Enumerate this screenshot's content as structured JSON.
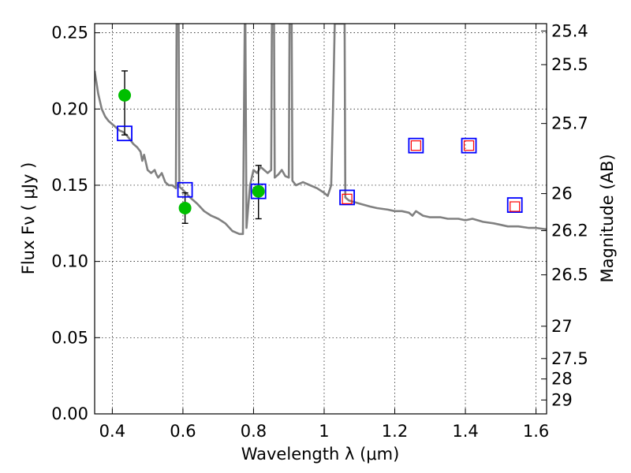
{
  "chart_data": {
    "type": "scatter",
    "xlabel": "Wavelength  λ (μm)",
    "ylabel": "Flux  Fν  ( μJy )",
    "y2label": "Magnitude (AB)",
    "xlim": [
      0.35,
      1.63
    ],
    "ylim": [
      0.0,
      0.256
    ],
    "grid": true,
    "x_ticks": [
      0.4,
      0.6,
      0.8,
      1.0,
      1.2,
      1.4,
      1.6
    ],
    "x_tick_labels": [
      "0.4",
      "0.6",
      "0.8",
      "1",
      "1.2",
      "1.4",
      "1.6"
    ],
    "y_ticks": [
      0.0,
      0.05,
      0.1,
      0.15,
      0.2,
      0.25
    ],
    "y_tick_labels": [
      "0.00",
      "0.05",
      "0.10",
      "0.15",
      "0.20",
      "0.25"
    ],
    "y2_ticks": [
      {
        "flux": 0.2512,
        "label": "25.4"
      },
      {
        "flux": 0.2291,
        "label": "25.5"
      },
      {
        "flux": 0.1905,
        "label": "25.7"
      },
      {
        "flux": 0.1445,
        "label": "26"
      },
      {
        "flux": 0.1202,
        "label": "26.2"
      },
      {
        "flux": 0.0912,
        "label": "26.5"
      },
      {
        "flux": 0.0575,
        "label": "27"
      },
      {
        "flux": 0.0363,
        "label": "27.5"
      },
      {
        "flux": 0.0229,
        "label": "28"
      },
      {
        "flux": 0.0091,
        "label": "29"
      }
    ],
    "series": [
      {
        "kind": "line",
        "color": "#808080",
        "x": [
          0.35,
          0.36,
          0.37,
          0.38,
          0.39,
          0.4,
          0.41,
          0.42,
          0.43,
          0.44,
          0.45,
          0.46,
          0.47,
          0.48,
          0.485,
          0.49,
          0.5,
          0.51,
          0.52,
          0.525,
          0.53,
          0.54,
          0.55,
          0.56,
          0.57,
          0.58,
          0.582,
          0.585,
          0.588,
          0.59,
          0.6,
          0.62,
          0.64,
          0.66,
          0.68,
          0.7,
          0.72,
          0.74,
          0.75,
          0.76,
          0.77,
          0.775,
          0.777,
          0.78,
          0.79,
          0.8,
          0.81,
          0.82,
          0.83,
          0.84,
          0.85,
          0.852,
          0.855,
          0.858,
          0.86,
          0.87,
          0.88,
          0.89,
          0.9,
          0.902,
          0.905,
          0.908,
          0.91,
          0.92,
          0.94,
          0.96,
          0.98,
          1.0,
          1.01,
          1.02,
          1.025,
          1.03,
          1.035,
          1.04,
          1.045,
          1.05,
          1.055,
          1.058,
          1.06,
          1.07,
          1.1,
          1.13,
          1.15,
          1.18,
          1.2,
          1.22,
          1.24,
          1.25,
          1.26,
          1.28,
          1.3,
          1.33,
          1.35,
          1.38,
          1.4,
          1.42,
          1.45,
          1.48,
          1.5,
          1.52,
          1.55,
          1.58,
          1.6,
          1.63
        ],
        "y": [
          0.225,
          0.21,
          0.2,
          0.195,
          0.192,
          0.19,
          0.188,
          0.186,
          0.185,
          0.183,
          0.18,
          0.177,
          0.175,
          0.172,
          0.166,
          0.17,
          0.16,
          0.158,
          0.16,
          0.157,
          0.155,
          0.158,
          0.152,
          0.15,
          0.15,
          0.148,
          0.256,
          0.256,
          0.256,
          0.149,
          0.147,
          0.142,
          0.138,
          0.133,
          0.13,
          0.128,
          0.125,
          0.12,
          0.119,
          0.118,
          0.118,
          0.256,
          0.256,
          0.122,
          0.15,
          0.16,
          0.158,
          0.162,
          0.16,
          0.158,
          0.16,
          0.256,
          0.256,
          0.256,
          0.155,
          0.157,
          0.16,
          0.156,
          0.155,
          0.256,
          0.256,
          0.256,
          0.153,
          0.15,
          0.152,
          0.15,
          0.148,
          0.145,
          0.143,
          0.15,
          0.2,
          0.256,
          0.256,
          0.256,
          0.256,
          0.256,
          0.256,
          0.256,
          0.142,
          0.14,
          0.138,
          0.136,
          0.135,
          0.134,
          0.133,
          0.133,
          0.132,
          0.13,
          0.133,
          0.13,
          0.129,
          0.129,
          0.128,
          0.128,
          0.127,
          0.128,
          0.126,
          0.125,
          0.124,
          0.123,
          0.123,
          0.122,
          0.122,
          0.121
        ]
      },
      {
        "kind": "marker",
        "shape": "circle",
        "color": "#00bf00",
        "points": [
          {
            "x": 0.435,
            "y": 0.209,
            "err_lo": 0.183,
            "err_hi": 0.225
          },
          {
            "x": 0.606,
            "y": 0.135,
            "err_lo": 0.125,
            "err_hi": 0.145
          },
          {
            "x": 0.814,
            "y": 0.146,
            "err_lo": 0.128,
            "err_hi": 0.163
          }
        ]
      },
      {
        "kind": "marker",
        "shape": "square",
        "color": "#0000ff",
        "points": [
          {
            "x": 0.435,
            "y": 0.184
          },
          {
            "x": 0.606,
            "y": 0.147
          },
          {
            "x": 0.814,
            "y": 0.146
          },
          {
            "x": 1.065,
            "y": 0.142
          },
          {
            "x": 1.26,
            "y": 0.176
          },
          {
            "x": 1.41,
            "y": 0.176
          },
          {
            "x": 1.54,
            "y": 0.137
          }
        ]
      },
      {
        "kind": "marker",
        "shape": "square-small",
        "color": "#ff0000",
        "points": [
          {
            "x": 1.065,
            "y": 0.141
          },
          {
            "x": 1.26,
            "y": 0.176
          },
          {
            "x": 1.41,
            "y": 0.176
          },
          {
            "x": 1.54,
            "y": 0.136
          }
        ]
      }
    ]
  }
}
